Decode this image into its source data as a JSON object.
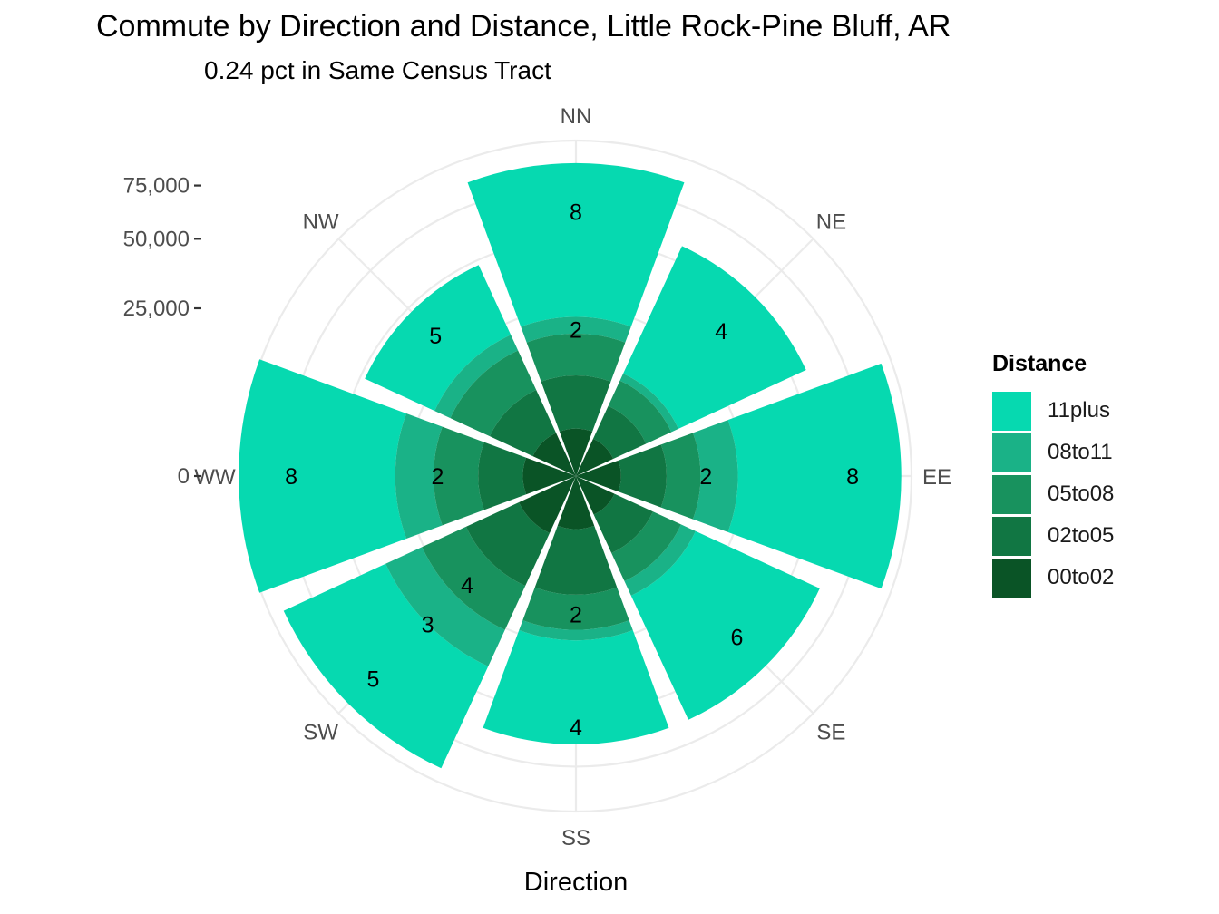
{
  "title": "Commute by Direction and Distance, Little Rock-Pine Bluff, AR",
  "subtitle": "0.24 pct in Same Census Tract",
  "chart_data": {
    "type": "bar",
    "coordinate_system": "polar (stacked wind rose)",
    "xlabel": "Direction",
    "categories": [
      "NN",
      "NE",
      "EE",
      "SE",
      "SS",
      "SW",
      "WW",
      "NW"
    ],
    "y_ticks": [
      "0",
      "25,000",
      "50,000",
      "75,000"
    ],
    "y_tick_values": [
      0,
      25000,
      50000,
      75000
    ],
    "ylim": [
      0,
      100000
    ],
    "grid": true,
    "legend_title": "Distance",
    "legend_position": "right",
    "series": [
      {
        "name": "00to02",
        "color": "#0a5426",
        "values": [
          2000,
          1500,
          1800,
          1600,
          2500,
          3500,
          2500,
          2000
        ]
      },
      {
        "name": "02to05",
        "color": "#117643",
        "values": [
          7000,
          3800,
          5500,
          4800,
          10000,
          9500,
          6000,
          6000
        ]
      },
      {
        "name": "05to08",
        "color": "#18925e",
        "values": [
          9000,
          4500,
          6500,
          5500,
          8500,
          12500,
          9500,
          9000
        ]
      },
      {
        "name": "08to11",
        "color": "#1ab287",
        "values": [
          4500,
          1500,
          9500,
          3500,
          3000,
          13500,
          11000,
          4500
        ]
      },
      {
        "name": "11plus",
        "color": "#06d9b0",
        "values": [
          64500,
          45700,
          70700,
          48600,
          40000,
          53000,
          72000,
          26500
        ]
      }
    ],
    "legend_order": [
      "11plus",
      "08to11",
      "05to08",
      "02to05",
      "00to02"
    ],
    "annotations": [
      {
        "direction": "NN",
        "label": "8",
        "value": 62000
      },
      {
        "direction": "NN",
        "label": "2",
        "value": 19000
      },
      {
        "direction": "NE",
        "label": "4",
        "value": 37500
      },
      {
        "direction": "EE",
        "label": "8",
        "value": 68000
      },
      {
        "direction": "EE",
        "label": "2",
        "value": 15000
      },
      {
        "direction": "SE",
        "label": "6",
        "value": 46000
      },
      {
        "direction": "SS",
        "label": "4",
        "value": 56000
      },
      {
        "direction": "SS",
        "label": "2",
        "value": 17000
      },
      {
        "direction": "SW",
        "label": "5",
        "value": 73000
      },
      {
        "direction": "SW",
        "label": "3",
        "value": 39000
      },
      {
        "direction": "SW",
        "label": "4",
        "value": 21000
      },
      {
        "direction": "WW",
        "label": "8",
        "value": 72000
      },
      {
        "direction": "WW",
        "label": "2",
        "value": 17000
      },
      {
        "direction": "NW",
        "label": "5",
        "value": 35000
      }
    ]
  }
}
